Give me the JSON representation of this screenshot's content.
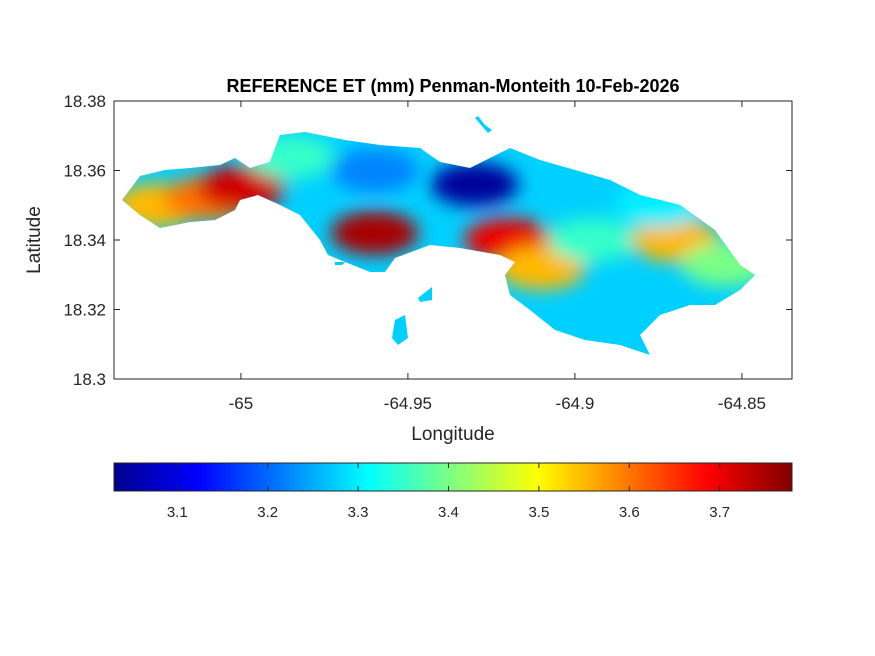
{
  "title": "REFERENCE ET (mm) Penman-Monteith 10-Feb-2026",
  "xlabel": "Longitude",
  "ylabel": "Latitude",
  "x_ticks": [
    -65,
    -64.95,
    -64.9,
    -64.85
  ],
  "x_tick_labels": [
    "-65",
    "-64.95",
    "-64.9",
    "-64.85"
  ],
  "y_ticks": [
    18.3,
    18.32,
    18.34,
    18.36,
    18.38
  ],
  "y_tick_labels": [
    "18.3",
    "18.32",
    "18.34",
    "18.36",
    "18.38"
  ],
  "colorbar": {
    "colormap": "jet",
    "range": [
      3.03,
      3.78
    ],
    "ticks": [
      3.1,
      3.2,
      3.3,
      3.4,
      3.5,
      3.6,
      3.7
    ],
    "tick_labels": [
      "3.1",
      "3.2",
      "3.3",
      "3.4",
      "3.5",
      "3.6",
      "3.7"
    ]
  },
  "chart_data": {
    "type": "heatmap",
    "title": "REFERENCE ET (mm) Penman-Monteith 10-Feb-2026",
    "xlabel": "Longitude",
    "ylabel": "Latitude",
    "xlim": [
      -65.038,
      -64.835
    ],
    "ylim": [
      18.3,
      18.38
    ],
    "grid": false,
    "colorbar_range": [
      3.03,
      3.78
    ],
    "regions": [
      {
        "lon": -65.025,
        "lat": 18.35,
        "value": 3.55
      },
      {
        "lon": -65.01,
        "lat": 18.352,
        "value": 3.6
      },
      {
        "lon": -65.0,
        "lat": 18.355,
        "value": 3.72
      },
      {
        "lon": -64.985,
        "lat": 18.364,
        "value": 3.35
      },
      {
        "lon": -64.96,
        "lat": 18.36,
        "value": 3.22
      },
      {
        "lon": -64.93,
        "lat": 18.356,
        "value": 3.05
      },
      {
        "lon": -64.96,
        "lat": 18.342,
        "value": 3.75
      },
      {
        "lon": -64.92,
        "lat": 18.34,
        "value": 3.7
      },
      {
        "lon": -64.91,
        "lat": 18.332,
        "value": 3.55
      },
      {
        "lon": -64.895,
        "lat": 18.34,
        "value": 3.35
      },
      {
        "lon": -64.87,
        "lat": 18.34,
        "value": 3.55
      },
      {
        "lon": -64.875,
        "lat": 18.35,
        "value": 3.3
      },
      {
        "lon": -64.855,
        "lat": 18.333,
        "value": 3.4
      }
    ]
  }
}
